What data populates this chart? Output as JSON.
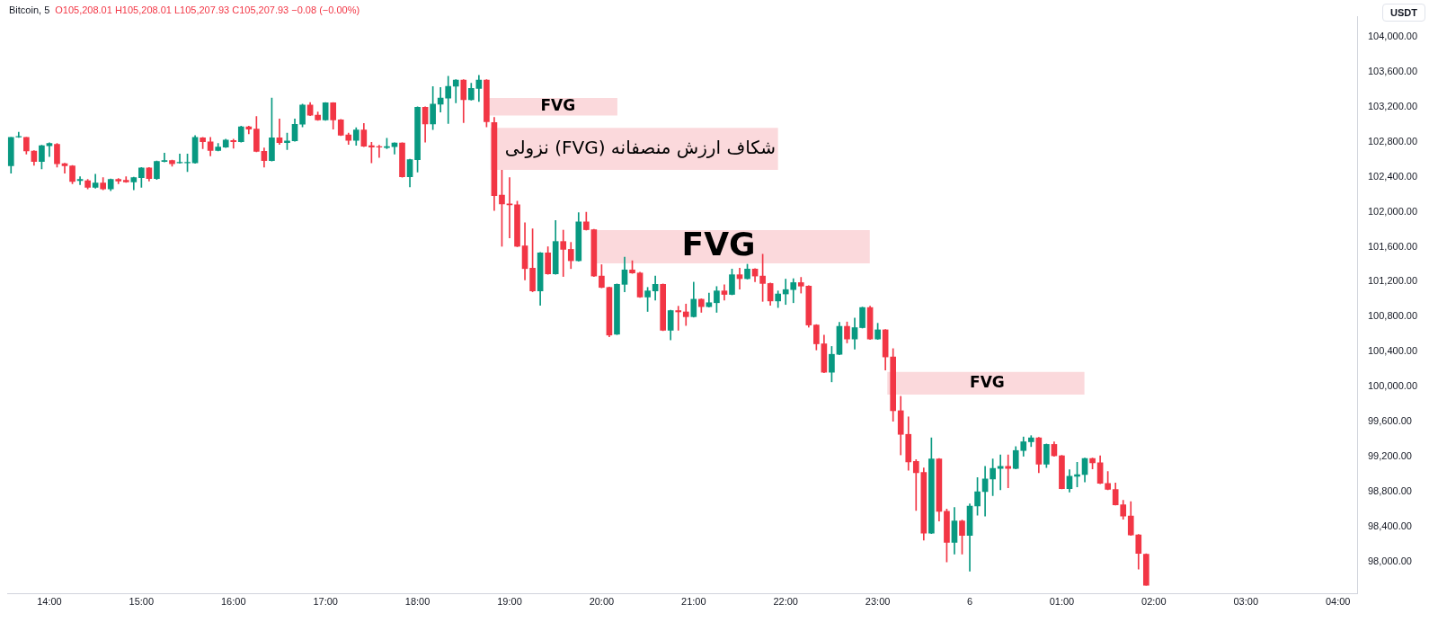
{
  "chart_data": {
    "type": "candlestick",
    "title": "Bitcoin, 5",
    "subtitle": "O105,208.01 H105,208.01 L105,207.93 C105,207.93 −0.08 (−0.00%)",
    "annotations": [
      "USDT"
    ],
    "bands": [
      {
        "axis": "y",
        "from": 103100,
        "to": 103300,
        "label": "FVG",
        "color": "#fbd9dc"
      },
      {
        "axis": "y",
        "from": 102480,
        "to": 102960,
        "label": "شکاف ارزش منصفانه (FVG) نزولی",
        "color": "#fbd9dc"
      },
      {
        "axis": "y",
        "from": 101410,
        "to": 101790,
        "label": "FVG",
        "color": "#fbd9dc"
      },
      {
        "axis": "y",
        "from": 99910,
        "to": 100170,
        "label": "FVG",
        "color": "#fbd9dc"
      }
    ],
    "colors": [
      "#089981",
      "#089981",
      "#f23645",
      "#f23645",
      "#089981",
      "#089981",
      "#f23645",
      "#f23645",
      "#f23645",
      "#089981",
      "#f23645",
      "#089981",
      "#f23645",
      "#089981",
      "#f23645",
      "#f23645",
      "#089981",
      "#089981",
      "#f23645",
      "#089981",
      "#089981",
      "#f23645",
      "#089981",
      "#089981",
      "#089981",
      "#f23645",
      "#f23645",
      "#089981",
      "#089981",
      "#f23645",
      "#089981",
      "#f23645",
      "#f23645",
      "#f23645",
      "#089981",
      "#f23645",
      "#089981",
      "#089981",
      "#089981",
      "#f23645",
      "#f23645",
      "#089981",
      "#f23645",
      "#f23645",
      "#f23645",
      "#089981",
      "#f23645",
      "#f23645",
      "#f23645",
      "#089981",
      "#089981",
      "#f23645",
      "#089981",
      "#089981",
      "#f23645",
      "#089981",
      "#089981",
      "#089981",
      "#089981",
      "#f23645",
      "#089981",
      "#089981",
      "#f23645",
      "#f23645",
      "#f23645",
      "#f23645",
      "#f23645",
      "#f23645",
      "#f23645",
      "#089981",
      "#f23645",
      "#089981",
      "#f23645",
      "#f23645",
      "#089981",
      "#f23645",
      "#f23645",
      "#f23645",
      "#f23645",
      "#089981",
      "#089981",
      "#f23645",
      "#f23645",
      "#089981",
      "#089981",
      "#f23645",
      "#089981",
      "#f23645",
      "#f23645",
      "#089981",
      "#f23645",
      "#089981",
      "#089981",
      "#f23645",
      "#089981",
      "#f23645",
      "#089981",
      "#f23645",
      "#f23645",
      "#f23645",
      "#089981",
      "#089981",
      "#089981",
      "#f23645",
      "#f23645",
      "#f23645",
      "#f23645",
      "#089981",
      "#089981",
      "#f23645",
      "#089981",
      "#089981",
      "#f23645",
      "#089981",
      "#f23645",
      "#f23645",
      "#f23645",
      "#f23645",
      "#f23645",
      "#f23645",
      "#089981",
      "#f23645",
      "#f23645",
      "#089981",
      "#f23645",
      "#089981",
      "#089981",
      "#089981",
      "#089981",
      "#089981",
      "#f23645",
      "#089981",
      "#089981",
      "#089981",
      "#f23645",
      "#089981",
      "#f23645",
      "#f23645",
      "#089981",
      "#089981",
      "#089981",
      "#f23645",
      "#f23645",
      "#f23645",
      "#f23645",
      "#f23645",
      "#f23645",
      "#f23645",
      "#f23645",
      null,
      null,
      null,
      null,
      null,
      null,
      null,
      null,
      null,
      null,
      null,
      null,
      null,
      null,
      null,
      null,
      null,
      null,
      null,
      null,
      null,
      null,
      null,
      null,
      null,
      null,
      null
    ],
    "categories": [
      null,
      null,
      null,
      null,
      null,
      "14:00",
      null,
      null,
      null,
      null,
      null,
      null,
      null,
      null,
      null,
      null,
      null,
      "15:00",
      null,
      null,
      null,
      null,
      null,
      null,
      null,
      null,
      null,
      null,
      null,
      "16:00",
      null,
      null,
      null,
      null,
      null,
      null,
      null,
      null,
      null,
      null,
      null,
      "17:00",
      null,
      null,
      null,
      null,
      null,
      null,
      null,
      null,
      null,
      null,
      null,
      "18:00",
      null,
      null,
      null,
      null,
      null,
      null,
      null,
      null,
      null,
      null,
      null,
      "19:00",
      null,
      null,
      null,
      null,
      null,
      null,
      null,
      null,
      null,
      null,
      null,
      "20:00",
      null,
      null,
      null,
      null,
      null,
      null,
      null,
      null,
      null,
      null,
      null,
      "21:00",
      null,
      null,
      null,
      null,
      null,
      null,
      null,
      null,
      null,
      null,
      null,
      "22:00",
      null,
      null,
      null,
      null,
      null,
      null,
      null,
      null,
      null,
      null,
      null,
      "23:00",
      null,
      null,
      null,
      null,
      null,
      null,
      null,
      null,
      null,
      null,
      null,
      "6",
      null,
      null,
      null,
      null,
      null,
      null,
      null,
      null,
      null,
      null,
      null,
      "01:00",
      null,
      null,
      null,
      null,
      null,
      null,
      null,
      null,
      null,
      null,
      null,
      "02:00",
      null,
      null,
      null,
      null,
      null,
      null,
      null,
      null,
      null,
      null,
      null,
      "03:00",
      null,
      null,
      null,
      null,
      null,
      null,
      null,
      null,
      null,
      null,
      null,
      "04:00",
      null,
      null
    ],
    "ohlc": [
      [
        102525,
        102850,
        102440,
        102850
      ],
      [
        102855,
        102910,
        102850,
        102860
      ],
      [
        102850,
        102850,
        102660,
        102695
      ],
      [
        102695,
        102700,
        102530,
        102575
      ],
      [
        102575,
        102760,
        102490,
        102755
      ],
      [
        102755,
        102790,
        102630,
        102780
      ],
      [
        102770,
        102780,
        102510,
        102550
      ],
      [
        102550,
        102555,
        102440,
        102525
      ],
      [
        102525,
        102530,
        102320,
        102345
      ],
      [
        102355,
        102400,
        102310,
        102370
      ],
      [
        102355,
        102370,
        102260,
        102280
      ],
      [
        102280,
        102430,
        102270,
        102330
      ],
      [
        102330,
        102390,
        102250,
        102260
      ],
      [
        102260,
        102375,
        102240,
        102370
      ],
      [
        102370,
        102380,
        102320,
        102350
      ],
      [
        102360,
        102400,
        102335,
        102340
      ],
      [
        102340,
        102395,
        102250,
        102390
      ],
      [
        102390,
        102505,
        102280,
        102500
      ],
      [
        102500,
        102505,
        102350,
        102380
      ],
      [
        102380,
        102580,
        102370,
        102575
      ],
      [
        102575,
        102670,
        102570,
        102585
      ],
      [
        102585,
        102590,
        102520,
        102550
      ],
      [
        102560,
        102660,
        102555,
        102565
      ],
      [
        102560,
        102660,
        102460,
        102565
      ],
      [
        102560,
        102870,
        102555,
        102850
      ],
      [
        102845,
        102850,
        102720,
        102800
      ],
      [
        102800,
        102850,
        102640,
        102700
      ],
      [
        102700,
        102780,
        102695,
        102740
      ],
      [
        102740,
        102830,
        102735,
        102820
      ],
      [
        102815,
        102830,
        102725,
        102800
      ],
      [
        102800,
        102980,
        102795,
        102970
      ],
      [
        102970,
        102980,
        102890,
        102945
      ],
      [
        102945,
        103090,
        102685,
        102690
      ],
      [
        102690,
        102730,
        102510,
        102585
      ],
      [
        102585,
        103300,
        102580,
        102845
      ],
      [
        102845,
        103060,
        102770,
        102790
      ],
      [
        102790,
        102900,
        102710,
        102810
      ],
      [
        102810,
        103060,
        102805,
        103000
      ],
      [
        103000,
        103230,
        102970,
        103220
      ],
      [
        103220,
        103250,
        103100,
        103105
      ],
      [
        103105,
        103140,
        103045,
        103050
      ],
      [
        103050,
        103250,
        103045,
        103245
      ],
      [
        103245,
        103250,
        102945,
        103050
      ],
      [
        103050,
        103055,
        102870,
        102875
      ],
      [
        102880,
        102900,
        102770,
        102815
      ],
      [
        102815,
        102960,
        102760,
        102935
      ],
      [
        102935,
        103010,
        102745,
        102750
      ],
      [
        102755,
        102795,
        102560,
        102740
      ],
      [
        102745,
        102760,
        102620,
        102740
      ],
      [
        102735,
        102840,
        102720,
        102745
      ],
      [
        102745,
        102790,
        102660,
        102785
      ],
      [
        102785,
        102790,
        102395,
        102400
      ],
      [
        102400,
        102600,
        102285,
        102595
      ],
      [
        102595,
        103200,
        102455,
        103195
      ],
      [
        103195,
        103200,
        102795,
        103005
      ],
      [
        103005,
        103430,
        102940,
        103230
      ],
      [
        103230,
        103420,
        103140,
        103300
      ],
      [
        103300,
        103550,
        103010,
        103435
      ],
      [
        103435,
        103510,
        103245,
        103505
      ],
      [
        103505,
        103510,
        103020,
        103280
      ],
      [
        103280,
        103470,
        103275,
        103410
      ],
      [
        103410,
        103560,
        103260,
        103505
      ],
      [
        103505,
        103510,
        102970,
        103030
      ],
      [
        103020,
        103080,
        102015,
        102185
      ],
      [
        102190,
        102475,
        101605,
        102090
      ],
      [
        102090,
        102390,
        101700,
        102080
      ],
      [
        102080,
        102120,
        101600,
        101605
      ],
      [
        101610,
        101875,
        101220,
        101350
      ],
      [
        101355,
        101805,
        101085,
        101095
      ],
      [
        101095,
        101535,
        100930,
        101530
      ],
      [
        101530,
        101600,
        101285,
        101290
      ],
      [
        101290,
        101900,
        101285,
        101660
      ],
      [
        101660,
        101790,
        101260,
        101570
      ],
      [
        101570,
        101650,
        101350,
        101440
      ],
      [
        101440,
        101990,
        101435,
        101885
      ],
      [
        101885,
        101995,
        101790,
        101795
      ],
      [
        101795,
        101800,
        101260,
        101265
      ],
      [
        101265,
        101395,
        101130,
        101135
      ],
      [
        101135,
        101140,
        100570,
        100590
      ],
      [
        100600,
        101175,
        100595,
        101170
      ],
      [
        101170,
        101480,
        101085,
        101335
      ],
      [
        101335,
        101440,
        101295,
        101300
      ],
      [
        101300,
        101310,
        101020,
        101025
      ],
      [
        101025,
        101135,
        100860,
        101095
      ],
      [
        101095,
        101265,
        100990,
        101170
      ],
      [
        101170,
        101175,
        100640,
        100645
      ],
      [
        100645,
        100875,
        100535,
        100870
      ],
      [
        100870,
        100920,
        100645,
        100855
      ],
      [
        100855,
        100945,
        100700,
        100800
      ],
      [
        100800,
        101195,
        100795,
        101000
      ],
      [
        101000,
        101005,
        100850,
        100915
      ],
      [
        100915,
        101070,
        100910,
        100960
      ],
      [
        100960,
        101145,
        100850,
        101095
      ],
      [
        101095,
        101165,
        100990,
        101055
      ],
      [
        101055,
        101345,
        101050,
        101280
      ],
      [
        101280,
        101355,
        101115,
        101235
      ],
      [
        101235,
        101400,
        101230,
        101345
      ],
      [
        101345,
        101350,
        101200,
        101265
      ],
      [
        101265,
        101515,
        100975,
        101180
      ],
      [
        101180,
        101185,
        100930,
        100980
      ],
      [
        100980,
        101095,
        100905,
        101060
      ],
      [
        101060,
        101230,
        100940,
        101110
      ],
      [
        101110,
        101235,
        100960,
        101190
      ],
      [
        101190,
        101250,
        101070,
        101150
      ],
      [
        101150,
        101155,
        100680,
        100705
      ],
      [
        100705,
        100710,
        100420,
        100490
      ],
      [
        100490,
        100590,
        100160,
        100165
      ],
      [
        100165,
        100460,
        100055,
        100370
      ],
      [
        100370,
        100735,
        100365,
        100690
      ],
      [
        100690,
        100740,
        100500,
        100545
      ],
      [
        100545,
        100785,
        100430,
        100675
      ],
      [
        100675,
        100910,
        100670,
        100905
      ],
      [
        100905,
        100920,
        100540,
        100545
      ],
      [
        100545,
        100725,
        100540,
        100650
      ],
      [
        100650,
        100655,
        100190,
        100340
      ],
      [
        100340,
        100435,
        99605,
        99725
      ],
      [
        99725,
        99890,
        99220,
        99455
      ],
      [
        99455,
        99655,
        99045,
        99140
      ],
      [
        99145,
        99165,
        98585,
        99015
      ],
      [
        99020,
        99070,
        98245,
        98325
      ],
      [
        98325,
        99415,
        98320,
        99175
      ],
      [
        99175,
        99180,
        98465,
        98575
      ],
      [
        98575,
        98600,
        97995,
        98220
      ],
      [
        98220,
        98620,
        98085,
        98465
      ],
      [
        98465,
        98475,
        98085,
        98300
      ],
      [
        98300,
        98660,
        97890,
        98635
      ],
      [
        98635,
        98960,
        98530,
        98800
      ],
      [
        98800,
        99090,
        98520,
        98945
      ],
      [
        98945,
        99175,
        98755,
        99065
      ],
      [
        99065,
        99220,
        98820,
        99090
      ],
      [
        99090,
        99220,
        98845,
        99065
      ],
      [
        99065,
        99315,
        99060,
        99270
      ],
      [
        99270,
        99425,
        99205,
        99370
      ],
      [
        99370,
        99440,
        99315,
        99415
      ],
      [
        99415,
        99420,
        99015,
        99115
      ],
      [
        99115,
        99345,
        99075,
        99340
      ],
      [
        99340,
        99370,
        99205,
        99210
      ],
      [
        99210,
        99215,
        98830,
        98835
      ],
      [
        98835,
        99050,
        98795,
        98975
      ],
      [
        98975,
        99135,
        98855,
        98995
      ],
      [
        98995,
        99185,
        98910,
        99180
      ],
      [
        99180,
        99185,
        99060,
        99130
      ],
      [
        99130,
        99210,
        98890,
        98895
      ],
      [
        98895,
        99030,
        98820,
        98825
      ],
      [
        98825,
        98900,
        98645,
        98650
      ],
      [
        98650,
        98700,
        98485,
        98520
      ],
      [
        98520,
        98685,
        98300,
        98305
      ],
      [
        98305,
        98310,
        97915,
        98095
      ],
      [
        98085,
        98090,
        97730,
        97730
      ],
      null,
      null,
      null,
      null,
      null,
      null,
      null,
      null,
      null,
      null,
      null,
      null,
      null,
      null,
      null,
      null,
      null,
      null,
      null,
      null,
      null,
      null,
      null,
      null,
      null,
      null,
      null
    ],
    "ylim": [
      97630,
      104230
    ],
    "yticks": [
      {
        "value": 98000,
        "label": "98,000.00"
      },
      {
        "value": 98400,
        "label": "98,400.00"
      },
      {
        "value": 98800,
        "label": "98,800.00"
      },
      {
        "value": 99200,
        "label": "99,200.00"
      },
      {
        "value": 99600,
        "label": "99,600.00"
      },
      {
        "value": 100000,
        "label": "100,000.00"
      },
      {
        "value": 100400,
        "label": "100,400.00"
      },
      {
        "value": 100800,
        "label": "100,800.00"
      },
      {
        "value": 101200,
        "label": "101,200.00"
      },
      {
        "value": 101600,
        "label": "101,600.00"
      },
      {
        "value": 102000,
        "label": "102,000.00"
      },
      {
        "value": 102400,
        "label": "102,400.00"
      },
      {
        "value": 102800,
        "label": "102,800.00"
      },
      {
        "value": 103200,
        "label": "103,200.00"
      },
      {
        "value": 103600,
        "label": "103,600.00"
      },
      {
        "value": 104000,
        "label": "104,000.00"
      }
    ]
  }
}
